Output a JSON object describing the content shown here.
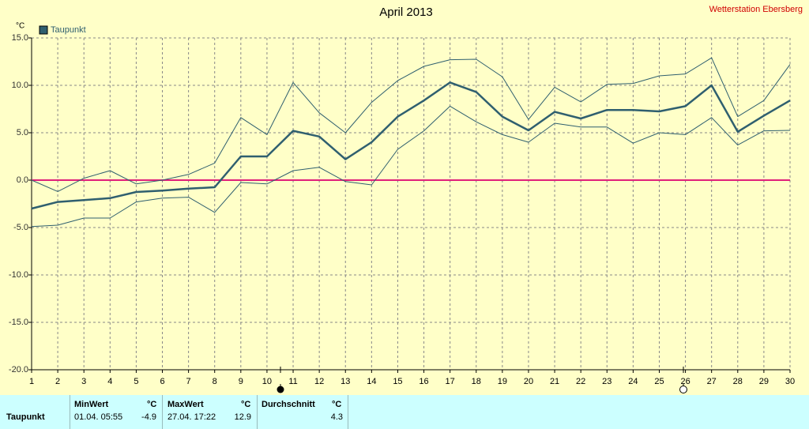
{
  "chart_data": {
    "type": "line",
    "title": "April 2013",
    "annotation": "Wetterstation Ebersberg",
    "y_label": "°C",
    "x": [
      1,
      2,
      3,
      4,
      5,
      6,
      7,
      8,
      9,
      10,
      11,
      12,
      13,
      14,
      15,
      16,
      17,
      18,
      19,
      20,
      21,
      22,
      23,
      24,
      25,
      26,
      27,
      28,
      29,
      30
    ],
    "series": [
      {
        "name": "Taupunkt",
        "color": "#2f5f6f",
        "width": 2.5,
        "values": [
          -3.0,
          -2.3,
          -2.1,
          -1.9,
          -1.25,
          -1.1,
          -0.9,
          -0.75,
          2.5,
          2.5,
          5.2,
          4.6,
          2.2,
          4.0,
          6.7,
          8.4,
          10.3,
          9.3,
          6.7,
          5.25,
          7.2,
          6.5,
          7.4,
          7.4,
          7.25,
          7.8,
          10.0,
          5.1,
          6.8,
          8.4
        ]
      },
      {
        "color": "#2f5f6f",
        "width": 1,
        "values": [
          0.0,
          -1.2,
          0.2,
          1.0,
          -0.4,
          0.0,
          0.6,
          1.8,
          6.6,
          4.8,
          10.3,
          7.1,
          5.0,
          8.2,
          10.5,
          12.0,
          12.7,
          12.75,
          10.9,
          6.4,
          9.8,
          8.25,
          10.1,
          10.2,
          11.0,
          11.2,
          12.9,
          6.7,
          8.4,
          12.2
        ]
      },
      {
        "color": "#2f5f6f",
        "width": 1,
        "values": [
          -4.9,
          -4.75,
          -4.0,
          -4.0,
          -2.3,
          -1.9,
          -1.8,
          -3.4,
          -0.25,
          -0.4,
          1.0,
          1.35,
          -0.15,
          -0.5,
          3.25,
          5.2,
          7.8,
          6.15,
          4.8,
          4.0,
          6.0,
          5.6,
          5.6,
          3.9,
          5.0,
          4.8,
          6.6,
          3.7,
          5.2,
          5.25
        ]
      }
    ],
    "xlim": [
      1,
      30
    ],
    "xticks": [
      1,
      2,
      3,
      4,
      5,
      6,
      7,
      8,
      9,
      10,
      11,
      12,
      13,
      14,
      15,
      16,
      17,
      18,
      19,
      20,
      21,
      22,
      23,
      24,
      25,
      26,
      27,
      28,
      29,
      30
    ],
    "ylim": [
      -20,
      15
    ],
    "yticks": [
      {
        "value": -20,
        "label": "-20.0"
      },
      {
        "value": -15,
        "label": "-15.0"
      },
      {
        "value": -10,
        "label": "-10.0"
      },
      {
        "value": -5,
        "label": "-5.0"
      },
      {
        "value": 0,
        "label": "0.0"
      },
      {
        "value": 5,
        "label": "5.0"
      },
      {
        "value": 10,
        "label": "10.0"
      },
      {
        "value": 15,
        "label": "15.0"
      }
    ],
    "grid": true,
    "reference_line": {
      "value": 0,
      "color": "#e0207a"
    }
  },
  "stats": {
    "header": [
      "MinWert",
      "°C",
      "MaxWert",
      "°C",
      "Durchschnitt",
      "°C"
    ],
    "row": {
      "label": "Taupunkt",
      "min_time": "01.04. 05:55",
      "min": -4.9,
      "max_time": "27.04. 17:22",
      "max": 12.9,
      "avg": 4.3
    }
  }
}
